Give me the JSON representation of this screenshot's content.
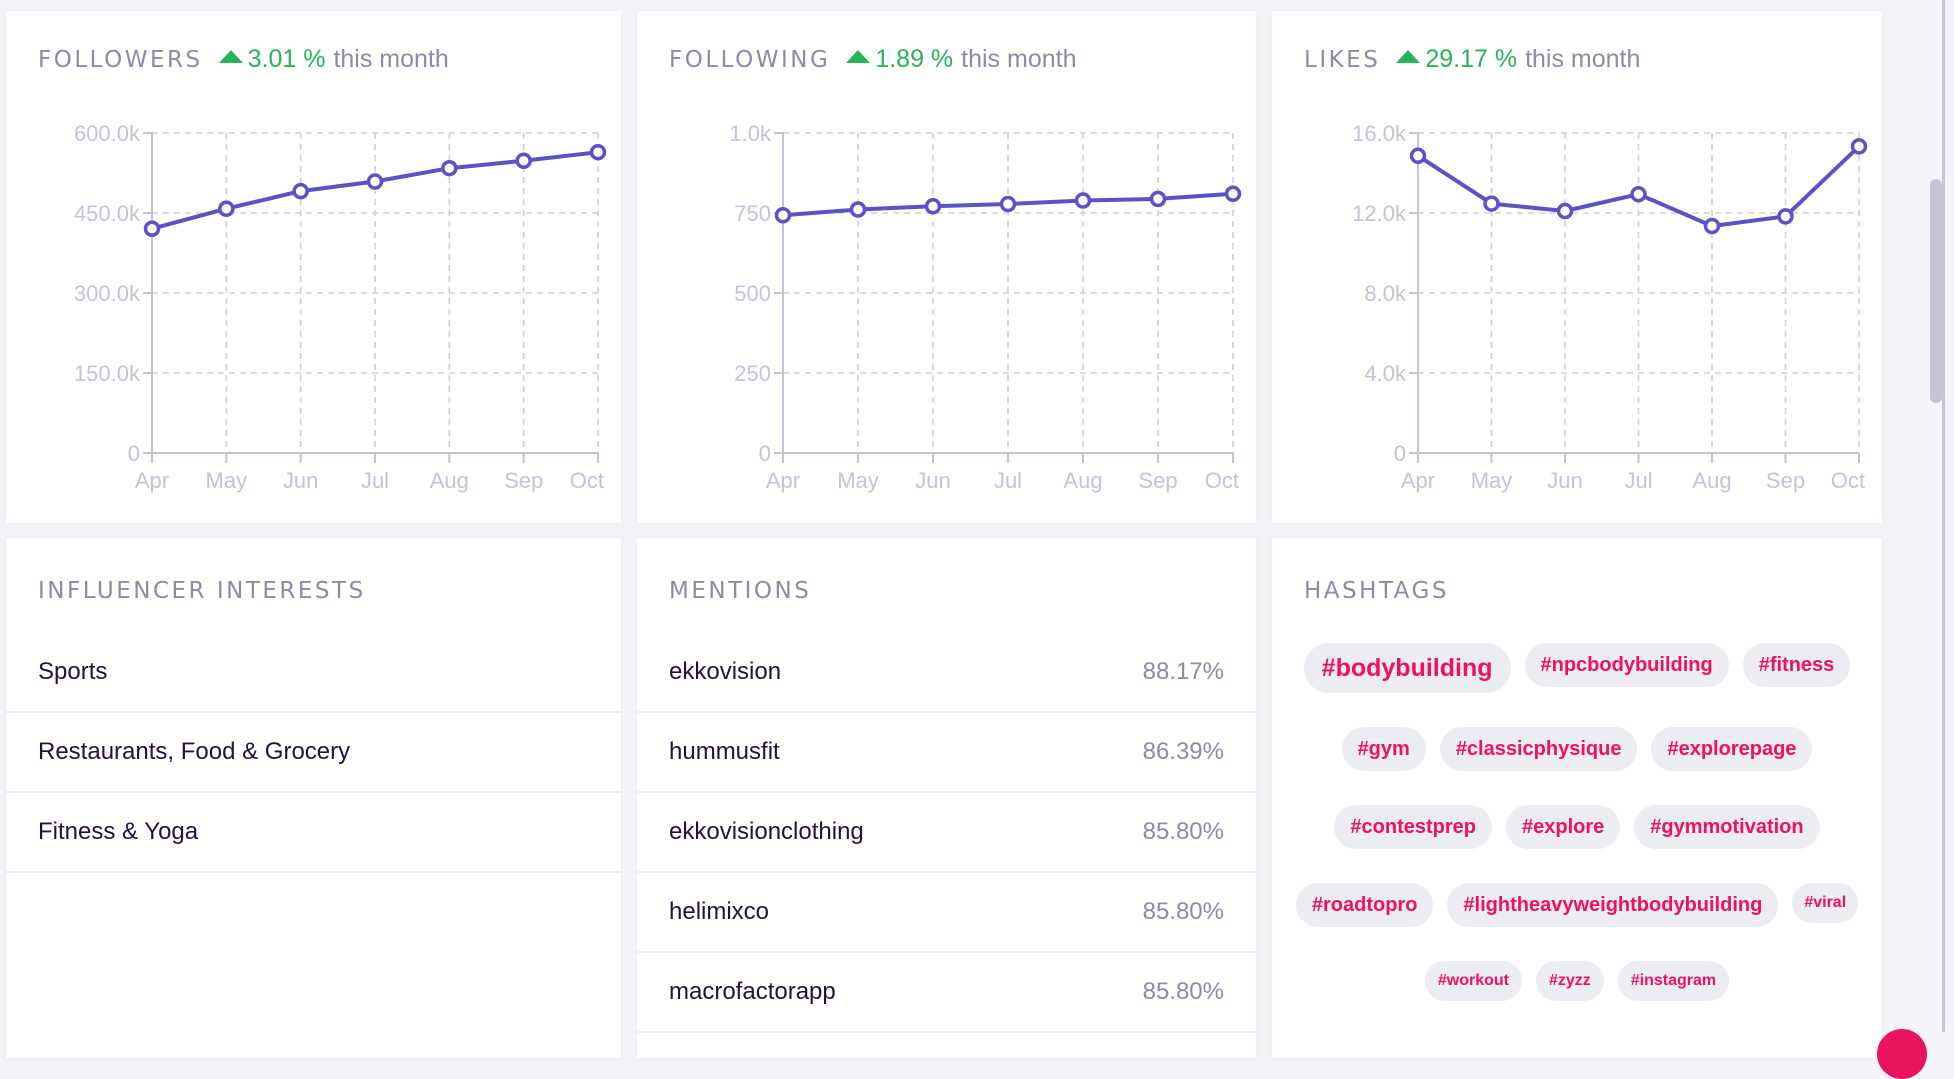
{
  "cards": {
    "followers": {
      "title": "FOLLOWERS",
      "trend_value": "3.01 %",
      "trend_suffix": "this month",
      "trend_direction": "up"
    },
    "following": {
      "title": "FOLLOWING",
      "trend_value": "1.89 %",
      "trend_suffix": "this month",
      "trend_direction": "up"
    },
    "likes": {
      "title": "LIKES",
      "trend_value": "29.17 %",
      "trend_suffix": "this month",
      "trend_direction": "up"
    }
  },
  "colors": {
    "line": "#5b52c9",
    "trend_up": "#27b35a",
    "hashtag_text": "#f0105f",
    "hashtag_bg": "#ececf3",
    "muted_text": "#8e89a6",
    "axis": "#c5c1d8",
    "grid": "#cfcfd6"
  },
  "chart_data": [
    {
      "type": "line",
      "title": "FOLLOWERS",
      "categories": [
        "Apr",
        "May",
        "Jun",
        "Jul",
        "Aug",
        "Sep",
        "Oct"
      ],
      "series": [
        {
          "name": "Followers",
          "values": [
            420500,
            458000,
            491000,
            509000,
            534000,
            548000,
            564000
          ]
        }
      ],
      "yticks": [
        0,
        150000,
        300000,
        450000,
        600000
      ],
      "ytick_labels": [
        "0",
        "150.0k",
        "300.0k",
        "450.0k",
        "600.0k"
      ],
      "ylim": [
        0,
        600000
      ],
      "grid": true,
      "xlabel": "",
      "ylabel": ""
    },
    {
      "type": "line",
      "title": "FOLLOWING",
      "categories": [
        "Apr",
        "May",
        "Jun",
        "Jul",
        "Aug",
        "Sep",
        "Oct"
      ],
      "series": [
        {
          "name": "Following",
          "values": [
            743,
            761,
            771,
            778,
            789,
            794,
            810
          ]
        }
      ],
      "yticks": [
        0,
        250,
        500,
        750,
        1000
      ],
      "ytick_labels": [
        "0",
        "250",
        "500",
        "750",
        "1.0k"
      ],
      "ylim": [
        0,
        1000
      ],
      "grid": true,
      "xlabel": "",
      "ylabel": ""
    },
    {
      "type": "line",
      "title": "LIKES",
      "categories": [
        "Apr",
        "May",
        "Jun",
        "Jul",
        "Aug",
        "Sep",
        "Oct"
      ],
      "series": [
        {
          "name": "Likes",
          "values": [
            14860,
            12470,
            12100,
            12940,
            11350,
            11830,
            15330
          ]
        }
      ],
      "yticks": [
        0,
        4000,
        8000,
        12000,
        16000
      ],
      "ytick_labels": [
        "0",
        "4.0k",
        "8.0k",
        "12.0k",
        "16.0k"
      ],
      "ylim": [
        0,
        16000
      ],
      "grid": true,
      "xlabel": "",
      "ylabel": ""
    }
  ],
  "interests": {
    "title": "INFLUENCER INTERESTS",
    "items": [
      {
        "label": "Sports"
      },
      {
        "label": "Restaurants, Food & Grocery"
      },
      {
        "label": "Fitness & Yoga"
      }
    ]
  },
  "mentions": {
    "title": "MENTIONS",
    "items": [
      {
        "name": "ekkovision",
        "value": "88.17%"
      },
      {
        "name": "hummusfit",
        "value": "86.39%"
      },
      {
        "name": "ekkovisionclothing",
        "value": "85.80%"
      },
      {
        "name": "helimixco",
        "value": "85.80%"
      },
      {
        "name": "macrofactorapp",
        "value": "85.80%"
      }
    ]
  },
  "hashtags": {
    "title": "HASHTAGS",
    "items": [
      {
        "tag": "#bodybuilding",
        "size": "big"
      },
      {
        "tag": "#npcbodybuilding",
        "size": "md"
      },
      {
        "tag": "#fitness",
        "size": "md"
      },
      {
        "tag": "#gym",
        "size": "md"
      },
      {
        "tag": "#classicphysique",
        "size": "md"
      },
      {
        "tag": "#explorepage",
        "size": "md"
      },
      {
        "tag": "#contestprep",
        "size": "md"
      },
      {
        "tag": "#explore",
        "size": "md"
      },
      {
        "tag": "#gymmotivation",
        "size": "md"
      },
      {
        "tag": "#roadtopro",
        "size": "md"
      },
      {
        "tag": "#lightheavyweightbodybuilding",
        "size": "md"
      },
      {
        "tag": "#viral",
        "size": "xs"
      },
      {
        "tag": "#workout",
        "size": "sm"
      },
      {
        "tag": "#zyzz",
        "size": "sm"
      },
      {
        "tag": "#instagram",
        "size": "sm"
      }
    ]
  }
}
